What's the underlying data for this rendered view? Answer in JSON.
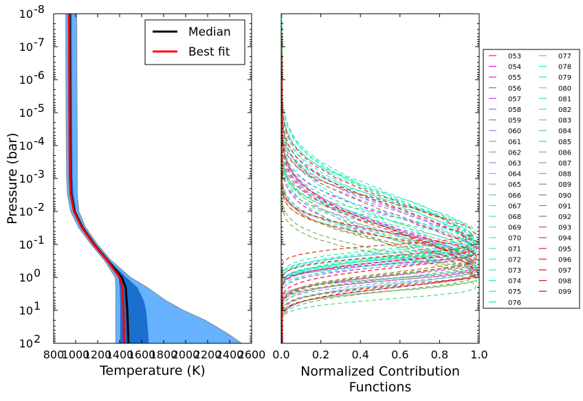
{
  "chart_data": [
    {
      "type": "line",
      "xlabel": "Temperature  (K)",
      "ylabel": "Pressure  (bar)",
      "xlim": [
        800,
        2600
      ],
      "ylim": [
        1e-08,
        100
      ],
      "y_scale": "log",
      "y_inverted": true,
      "x_ticks": [
        "800",
        "1000",
        "1200",
        "1400",
        "1600",
        "1800",
        "2000",
        "2200",
        "2400",
        "2600"
      ],
      "y_ticks": [
        "10-8",
        "10-7",
        "10-6",
        "10-5",
        "10-4",
        "10-3",
        "10-2",
        "10-1",
        "100",
        "101",
        "102"
      ],
      "legend_placement": "top-right",
      "series": [
        {
          "name": "Median",
          "color": "#000000",
          "pressure": [
            1e-08,
            1e-06,
            0.0001,
            0.001,
            0.003,
            0.01,
            0.03,
            0.1,
            0.3,
            1,
            2,
            10,
            100
          ],
          "temperature": [
            945,
            948,
            950,
            953,
            960,
            990,
            1060,
            1170,
            1290,
            1420,
            1455,
            1470,
            1480
          ]
        },
        {
          "name": "Best fit",
          "color": "#ff0000",
          "pressure": [
            1e-08,
            1e-06,
            0.0001,
            0.001,
            0.003,
            0.01,
            0.03,
            0.1,
            0.3,
            1,
            2,
            10,
            100
          ],
          "temperature": [
            940,
            943,
            945,
            948,
            955,
            985,
            1055,
            1165,
            1285,
            1400,
            1425,
            1435,
            1440
          ]
        }
      ],
      "bands": [
        {
          "level": "outer",
          "color": "#66b2ff",
          "pressure": [
            1e-08,
            1e-06,
            0.0001,
            0.001,
            0.003,
            0.01,
            0.03,
            0.1,
            0.3,
            1,
            2,
            5,
            10,
            20,
            50,
            100
          ],
          "low": [
            910,
            912,
            915,
            918,
            925,
            955,
            1025,
            1140,
            1260,
            1360,
            1365,
            1365,
            1365,
            1365,
            1365,
            1365
          ],
          "high": [
            1010,
            1012,
            1015,
            1015,
            1015,
            1030,
            1090,
            1200,
            1320,
            1500,
            1650,
            1820,
            1980,
            2180,
            2380,
            2510
          ]
        },
        {
          "level": "inner",
          "color": "#1a6fcc",
          "pressure": [
            1e-08,
            1e-06,
            0.0001,
            0.001,
            0.003,
            0.01,
            0.03,
            0.1,
            0.3,
            1,
            2,
            5,
            10,
            20,
            50,
            100
          ],
          "low": [
            930,
            932,
            935,
            938,
            945,
            975,
            1045,
            1160,
            1280,
            1390,
            1400,
            1405,
            1405,
            1405,
            1405,
            1405
          ],
          "high": [
            965,
            967,
            970,
            973,
            980,
            1005,
            1075,
            1185,
            1300,
            1460,
            1560,
            1620,
            1640,
            1650,
            1660,
            1665
          ]
        }
      ]
    },
    {
      "type": "line",
      "xlabel": "Normalized Contribution\nFunctions",
      "xlim": [
        0.0,
        1.0
      ],
      "ylim": [
        1e-08,
        100
      ],
      "y_scale": "log",
      "y_inverted": true,
      "x_ticks": [
        "0.0",
        "0.2",
        "0.4",
        "0.6",
        "0.8",
        "1.0"
      ],
      "line_style": "dashed",
      "colormap": "rainbow",
      "legend_placement": "outside-right",
      "legend_columns": 2,
      "series_names": [
        "053",
        "054",
        "055",
        "056",
        "057",
        "058",
        "059",
        "060",
        "061",
        "062",
        "063",
        "064",
        "065",
        "066",
        "067",
        "068",
        "069",
        "070",
        "071",
        "072",
        "073",
        "074",
        "075",
        "076",
        "077",
        "078",
        "079",
        "080",
        "081",
        "082",
        "083",
        "084",
        "085",
        "086",
        "087",
        "088",
        "089",
        "090",
        "091",
        "092",
        "093",
        "094",
        "095",
        "096",
        "097",
        "098",
        "099"
      ]
    }
  ]
}
